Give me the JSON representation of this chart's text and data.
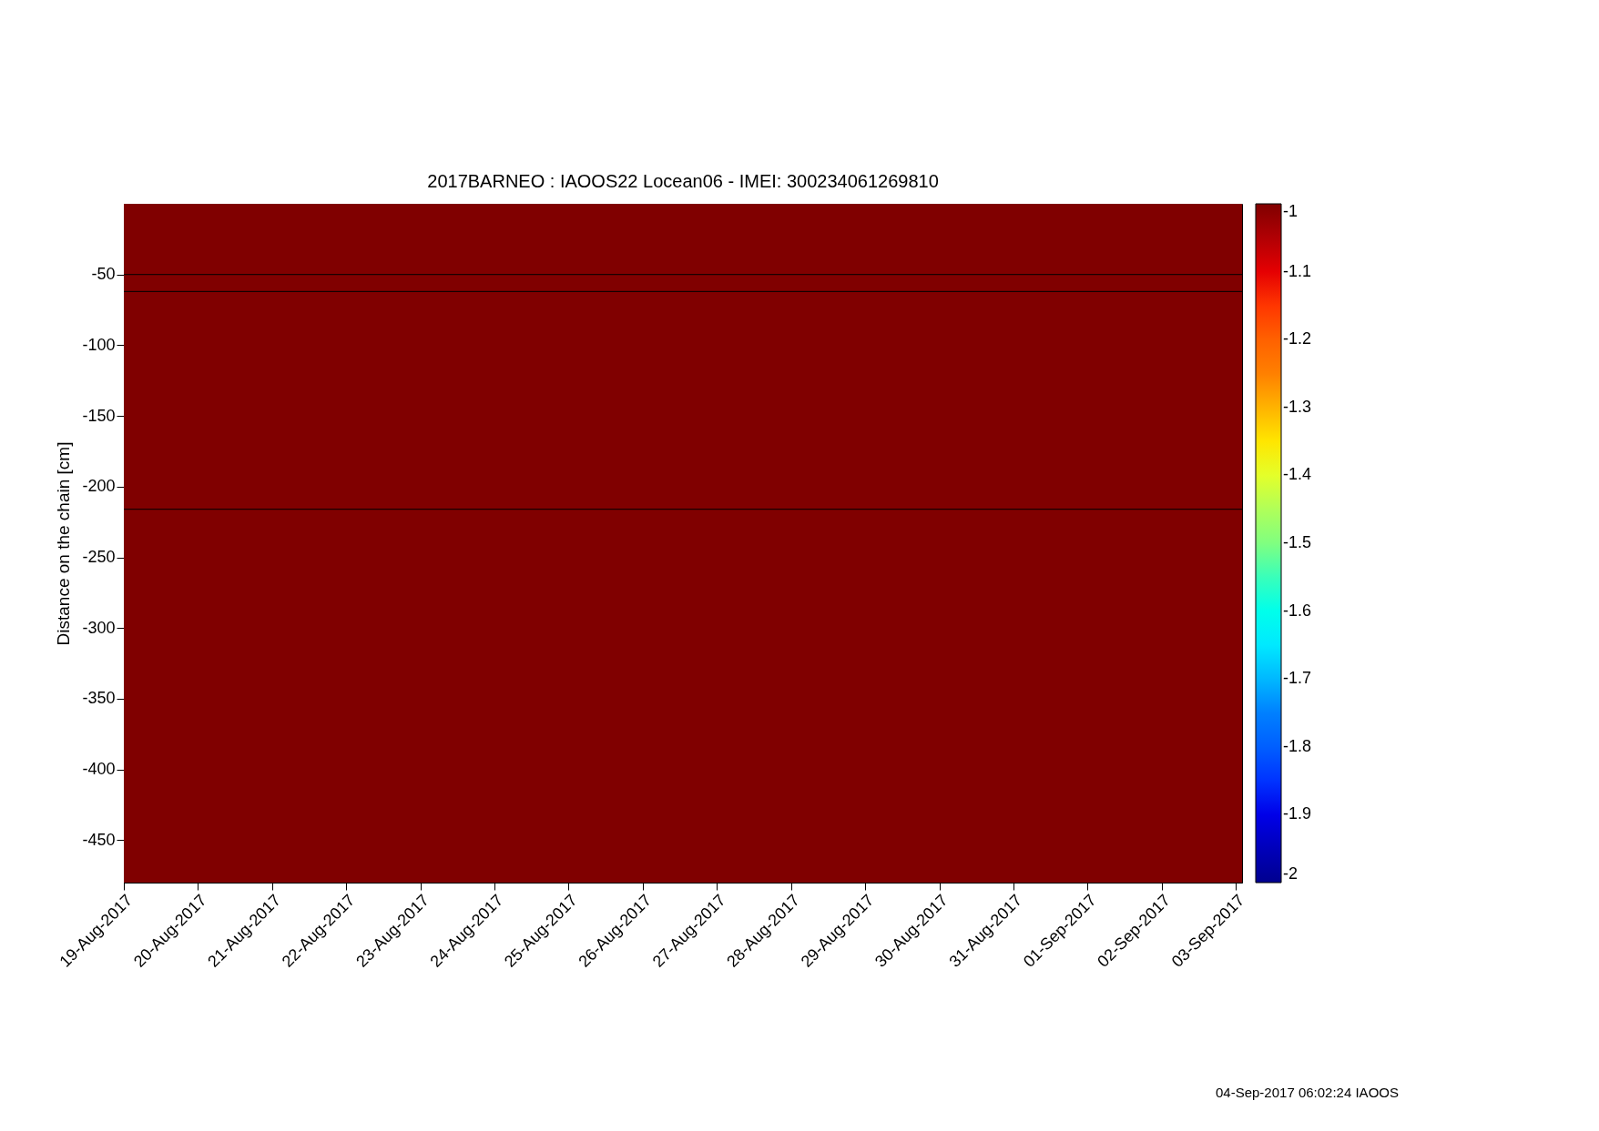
{
  "chart_data": {
    "type": "heatmap",
    "title": "2017BARNEO : IAOOS22  Locean06 - IMEI: 300234061269810",
    "ylabel": "Distance on the chain [cm]",
    "cells": [
      [
        -1
      ]
    ],
    "xlim": [
      "2017-08-19",
      "2017-09-03T02:00"
    ],
    "ylim": [
      -480,
      0
    ],
    "xticks": [
      {
        "value": "2017-08-19",
        "label": "19-Aug-2017"
      },
      {
        "value": "2017-08-20",
        "label": "20-Aug-2017"
      },
      {
        "value": "2017-08-21",
        "label": "21-Aug-2017"
      },
      {
        "value": "2017-08-22",
        "label": "22-Aug-2017"
      },
      {
        "value": "2017-08-23",
        "label": "23-Aug-2017"
      },
      {
        "value": "2017-08-24",
        "label": "24-Aug-2017"
      },
      {
        "value": "2017-08-25",
        "label": "25-Aug-2017"
      },
      {
        "value": "2017-08-26",
        "label": "26-Aug-2017"
      },
      {
        "value": "2017-08-27",
        "label": "27-Aug-2017"
      },
      {
        "value": "2017-08-28",
        "label": "28-Aug-2017"
      },
      {
        "value": "2017-08-29",
        "label": "29-Aug-2017"
      },
      {
        "value": "2017-08-30",
        "label": "30-Aug-2017"
      },
      {
        "value": "2017-08-31",
        "label": "31-Aug-2017"
      },
      {
        "value": "2017-09-01",
        "label": "01-Sep-2017"
      },
      {
        "value": "2017-09-02",
        "label": "02-Sep-2017"
      },
      {
        "value": "2017-09-03",
        "label": "03-Sep-2017"
      }
    ],
    "yticks": [
      -50,
      -100,
      -150,
      -200,
      -250,
      -300,
      -350,
      -400,
      -450
    ],
    "clim": [
      -2,
      -1
    ],
    "cticks": [
      -2,
      -1.9,
      -1.8,
      -1.7,
      -1.6,
      -1.5,
      -1.4,
      -1.3,
      -1.2,
      -1.1,
      -1
    ],
    "ref_lines": [
      {
        "axis": "y",
        "value": -50,
        "color": "#000000"
      },
      {
        "axis": "y",
        "value": -62,
        "color": "#000000"
      },
      {
        "axis": "y",
        "value": -216,
        "color": "#000000"
      }
    ],
    "annotations": [
      "04-Sep-2017 06:02:24 IAOOS"
    ]
  }
}
